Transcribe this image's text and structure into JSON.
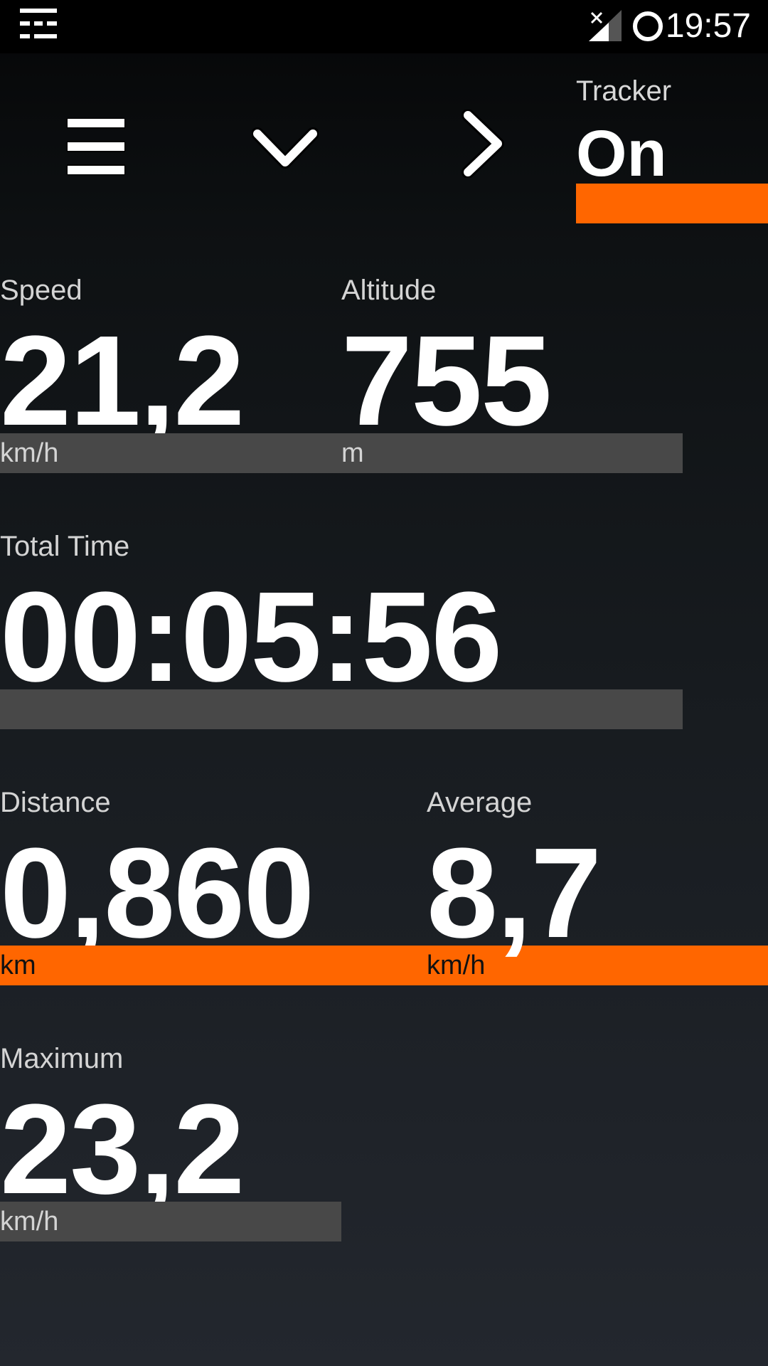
{
  "status_bar": {
    "time": "19:57",
    "icons": [
      "notification-menu-icon",
      "signal-no-service-icon",
      "sync-ring-icon"
    ]
  },
  "toolbar": {
    "menu_icon": "hamburger-menu-icon",
    "dropdown_icon": "chevron-down-icon",
    "next_icon": "chevron-right-icon"
  },
  "tracker": {
    "label": "Tracker",
    "value": "On",
    "accent": "#ff6600"
  },
  "metrics": {
    "speed": {
      "label": "Speed",
      "value": "21,2",
      "unit": "km/h"
    },
    "altitude": {
      "label": "Altitude",
      "value": "755",
      "unit": "m"
    },
    "total_time": {
      "label": "Total Time",
      "value": "00:05:56",
      "unit": ""
    },
    "distance": {
      "label": "Distance",
      "value": "0,860",
      "unit": "km"
    },
    "average": {
      "label": "Average",
      "value": "8,7",
      "unit": "km/h"
    },
    "maximum": {
      "label": "Maximum",
      "value": "23,2",
      "unit": "km/h"
    }
  },
  "colors": {
    "accent": "#ff6600",
    "bar_gray": "#484848",
    "text_primary": "#ffffff",
    "text_secondary": "#d4d4d4"
  }
}
